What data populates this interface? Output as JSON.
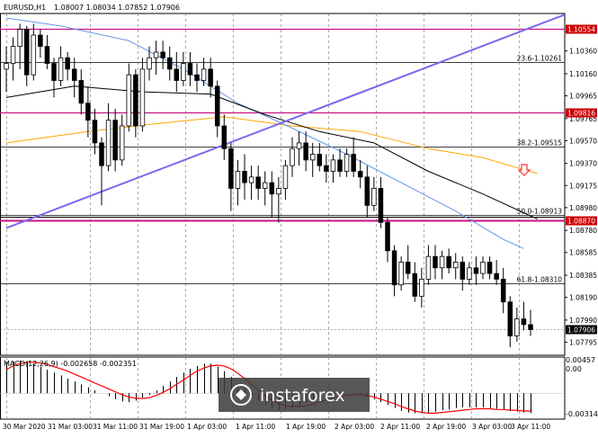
{
  "header": {
    "symbol": "EURUSD,H1",
    "ohlc": "1.08007 1.08034 1.07852 1.07906"
  },
  "indicator": {
    "label": "MACD(12,26,9) -0.002658 -0.002351",
    "scale_top": "0.00457",
    "scale_zero": "0.00",
    "scale_bottom": "-0.003142"
  },
  "watermark": {
    "text": "instaforex"
  },
  "price_marker": {
    "text": "1.07906",
    "value": 1.07906
  },
  "colors": {
    "bull_candle": "#ffffff",
    "bear_candle": "#000000",
    "trendline": "#7b68ee",
    "ma_black": "#000000",
    "ma_blue": "#6495ed",
    "ma_orange": "#ffa500",
    "resistance_line": "#c71585",
    "macd_signal": "#ff0000",
    "price_badge": "#cc0000",
    "down_arrow": "#ff3333"
  },
  "chart_data": {
    "type": "candlestick",
    "price_axis_ticks": [
      "1.10360",
      "1.10160",
      "1.09965",
      "1.09765",
      "1.09570",
      "1.09370",
      "1.09175",
      "1.08980",
      "1.08780",
      "1.08585",
      "1.08385",
      "1.08190",
      "1.07990",
      "1.07795"
    ],
    "time_axis_ticks": [
      "30 Mar 2020",
      "31 Mar 03:00",
      "31 Mar 11:00",
      "31 Mar 19:00",
      "1 Apr 03:00",
      "1 Apr 11:00",
      "1 Apr 19:00",
      "2 Apr 03:00",
      "2 Apr 11:00",
      "2 Apr 19:00",
      "3 Apr 03:00",
      "3 Apr 11:00"
    ],
    "ylim": [
      1.0768,
      1.1069
    ],
    "horizontal_levels": [
      {
        "label": "1.10554",
        "value": 1.10554,
        "kind": "resistance"
      },
      {
        "label": "23.6-1.10261",
        "value": 1.10261,
        "kind": "fibonacci"
      },
      {
        "label": "1.09816",
        "value": 1.09816,
        "kind": "resistance"
      },
      {
        "label": "38.2-1.09515",
        "value": 1.09515,
        "kind": "fibonacci"
      },
      {
        "label": "50.0-1.08913",
        "value": 1.08913,
        "kind": "fibonacci"
      },
      {
        "label": "1.08870",
        "value": 1.0887,
        "kind": "resistance"
      },
      {
        "label": "61.8-1.08310",
        "value": 1.0831,
        "kind": "fibonacci"
      }
    ],
    "candles": [
      {
        "o": 1.102,
        "h": 1.104,
        "l": 1.1,
        "c": 1.1025
      },
      {
        "o": 1.1025,
        "h": 1.1048,
        "l": 1.101,
        "c": 1.104
      },
      {
        "o": 1.104,
        "h": 1.106,
        "l": 1.102,
        "c": 1.1055
      },
      {
        "o": 1.1055,
        "h": 1.1058,
        "l": 1.1005,
        "c": 1.1015
      },
      {
        "o": 1.1015,
        "h": 1.106,
        "l": 1.101,
        "c": 1.105
      },
      {
        "o": 1.105,
        "h": 1.1055,
        "l": 1.103,
        "c": 1.104
      },
      {
        "o": 1.104,
        "h": 1.105,
        "l": 1.102,
        "c": 1.1025
      },
      {
        "o": 1.1025,
        "h": 1.103,
        "l": 1.0995,
        "c": 1.101
      },
      {
        "o": 1.101,
        "h": 1.104,
        "l": 1.1005,
        "c": 1.103
      },
      {
        "o": 1.103,
        "h": 1.1035,
        "l": 1.101,
        "c": 1.102
      },
      {
        "o": 1.102,
        "h": 1.103,
        "l": 1.0995,
        "c": 1.101
      },
      {
        "o": 1.101,
        "h": 1.102,
        "l": 1.098,
        "c": 1.099
      },
      {
        "o": 1.099,
        "h": 1.1005,
        "l": 1.096,
        "c": 1.0975
      },
      {
        "o": 1.0975,
        "h": 1.0985,
        "l": 1.0945,
        "c": 1.0955
      },
      {
        "o": 1.0955,
        "h": 1.096,
        "l": 1.09,
        "c": 1.0935
      },
      {
        "o": 1.0935,
        "h": 1.099,
        "l": 1.093,
        "c": 1.0975
      },
      {
        "o": 1.0975,
        "h": 1.0985,
        "l": 1.093,
        "c": 1.094
      },
      {
        "o": 1.094,
        "h": 1.098,
        "l": 1.0935,
        "c": 1.097
      },
      {
        "o": 1.097,
        "h": 1.1025,
        "l": 1.0965,
        "c": 1.1015
      },
      {
        "o": 1.1015,
        "h": 1.102,
        "l": 1.096,
        "c": 1.097
      },
      {
        "o": 1.097,
        "h": 1.103,
        "l": 1.0965,
        "c": 1.102
      },
      {
        "o": 1.102,
        "h": 1.104,
        "l": 1.101,
        "c": 1.103
      },
      {
        "o": 1.103,
        "h": 1.1045,
        "l": 1.1015,
        "c": 1.1035
      },
      {
        "o": 1.1035,
        "h": 1.1045,
        "l": 1.102,
        "c": 1.103
      },
      {
        "o": 1.103,
        "h": 1.104,
        "l": 1.101,
        "c": 1.102
      },
      {
        "o": 1.102,
        "h": 1.1035,
        "l": 1.1,
        "c": 1.101
      },
      {
        "o": 1.101,
        "h": 1.1035,
        "l": 1.1005,
        "c": 1.1025
      },
      {
        "o": 1.1025,
        "h": 1.1035,
        "l": 1.1005,
        "c": 1.1015
      },
      {
        "o": 1.1015,
        "h": 1.1025,
        "l": 1.1,
        "c": 1.101
      },
      {
        "o": 1.101,
        "h": 1.103,
        "l": 1.1005,
        "c": 1.102
      },
      {
        "o": 1.102,
        "h": 1.103,
        "l": 1.0995,
        "c": 1.1005
      },
      {
        "o": 1.1005,
        "h": 1.101,
        "l": 1.096,
        "c": 1.097
      },
      {
        "o": 1.097,
        "h": 1.098,
        "l": 1.094,
        "c": 1.095
      },
      {
        "o": 1.095,
        "h": 1.0955,
        "l": 1.0895,
        "c": 1.0915
      },
      {
        "o": 1.0915,
        "h": 1.094,
        "l": 1.09,
        "c": 1.093
      },
      {
        "o": 1.093,
        "h": 1.0945,
        "l": 1.0905,
        "c": 1.092
      },
      {
        "o": 1.092,
        "h": 1.0935,
        "l": 1.0905,
        "c": 1.0925
      },
      {
        "o": 1.0925,
        "h": 1.0935,
        "l": 1.0905,
        "c": 1.0915
      },
      {
        "o": 1.0915,
        "h": 1.093,
        "l": 1.09,
        "c": 1.092
      },
      {
        "o": 1.092,
        "h": 1.093,
        "l": 1.089,
        "c": 1.091
      },
      {
        "o": 1.091,
        "h": 1.0925,
        "l": 1.0885,
        "c": 1.0915
      },
      {
        "o": 1.0915,
        "h": 1.094,
        "l": 1.0905,
        "c": 1.0935
      },
      {
        "o": 1.0935,
        "h": 1.096,
        "l": 1.0925,
        "c": 1.095
      },
      {
        "o": 1.095,
        "h": 1.0965,
        "l": 1.0935,
        "c": 1.0955
      },
      {
        "o": 1.0955,
        "h": 1.0965,
        "l": 1.093,
        "c": 1.094
      },
      {
        "o": 1.094,
        "h": 1.0955,
        "l": 1.0925,
        "c": 1.0945
      },
      {
        "o": 1.0945,
        "h": 1.0955,
        "l": 1.093,
        "c": 1.0935
      },
      {
        "o": 1.0935,
        "h": 1.0945,
        "l": 1.092,
        "c": 1.093
      },
      {
        "o": 1.093,
        "h": 1.0945,
        "l": 1.092,
        "c": 1.094
      },
      {
        "o": 1.094,
        "h": 1.095,
        "l": 1.0925,
        "c": 1.093
      },
      {
        "o": 1.093,
        "h": 1.095,
        "l": 1.0925,
        "c": 1.0945
      },
      {
        "o": 1.0945,
        "h": 1.096,
        "l": 1.0925,
        "c": 1.093
      },
      {
        "o": 1.093,
        "h": 1.094,
        "l": 1.0915,
        "c": 1.0925
      },
      {
        "o": 1.0925,
        "h": 1.0935,
        "l": 1.089,
        "c": 1.09
      },
      {
        "o": 1.09,
        "h": 1.0925,
        "l": 1.0895,
        "c": 1.0915
      },
      {
        "o": 1.0915,
        "h": 1.0925,
        "l": 1.088,
        "c": 1.0885
      },
      {
        "o": 1.0885,
        "h": 1.089,
        "l": 1.085,
        "c": 1.086
      },
      {
        "o": 1.086,
        "h": 1.0865,
        "l": 1.082,
        "c": 1.083
      },
      {
        "o": 1.083,
        "h": 1.0855,
        "l": 1.0825,
        "c": 1.085
      },
      {
        "o": 1.085,
        "h": 1.0865,
        "l": 1.0835,
        "c": 1.084
      },
      {
        "o": 1.084,
        "h": 1.085,
        "l": 1.0815,
        "c": 1.082
      },
      {
        "o": 1.082,
        "h": 1.0845,
        "l": 1.081,
        "c": 1.0835
      },
      {
        "o": 1.0835,
        "h": 1.0865,
        "l": 1.083,
        "c": 1.0855
      },
      {
        "o": 1.0855,
        "h": 1.0865,
        "l": 1.0835,
        "c": 1.0845
      },
      {
        "o": 1.0845,
        "h": 1.086,
        "l": 1.0835,
        "c": 1.0855
      },
      {
        "o": 1.0855,
        "h": 1.0862,
        "l": 1.084,
        "c": 1.0845
      },
      {
        "o": 1.0845,
        "h": 1.0858,
        "l": 1.0835,
        "c": 1.085
      },
      {
        "o": 1.085,
        "h": 1.0855,
        "l": 1.0825,
        "c": 1.0835
      },
      {
        "o": 1.0835,
        "h": 1.085,
        "l": 1.083,
        "c": 1.0845
      },
      {
        "o": 1.0845,
        "h": 1.0855,
        "l": 1.083,
        "c": 1.084
      },
      {
        "o": 1.084,
        "h": 1.0855,
        "l": 1.0835,
        "c": 1.085
      },
      {
        "o": 1.085,
        "h": 1.0855,
        "l": 1.0835,
        "c": 1.084
      },
      {
        "o": 1.084,
        "h": 1.0852,
        "l": 1.083,
        "c": 1.0835
      },
      {
        "o": 1.0835,
        "h": 1.0845,
        "l": 1.0805,
        "c": 1.0815
      },
      {
        "o": 1.0815,
        "h": 1.082,
        "l": 1.0775,
        "c": 1.0785
      },
      {
        "o": 1.0785,
        "h": 1.081,
        "l": 1.078,
        "c": 1.08
      },
      {
        "o": 1.08,
        "h": 1.0815,
        "l": 1.079,
        "c": 1.0795
      },
      {
        "o": 1.0795,
        "h": 1.0808,
        "l": 1.0785,
        "c": 1.07906
      }
    ],
    "ma_black": [
      [
        0,
        1.0995
      ],
      [
        10,
        1.1005
      ],
      [
        20,
        1.1
      ],
      [
        30,
        1.0998
      ],
      [
        38,
        1.098
      ],
      [
        46,
        1.0965
      ],
      [
        54,
        1.0955
      ],
      [
        62,
        1.093
      ],
      [
        70,
        1.091
      ],
      [
        78,
        1.0888
      ]
    ],
    "ma_blue": [
      [
        0,
        1.1065
      ],
      [
        8,
        1.1058
      ],
      [
        18,
        1.1045
      ],
      [
        26,
        1.102
      ],
      [
        34,
        1.099
      ],
      [
        42,
        1.0968
      ],
      [
        50,
        1.0945
      ],
      [
        58,
        1.092
      ],
      [
        66,
        1.0895
      ],
      [
        73,
        1.087
      ],
      [
        76,
        1.0862
      ]
    ],
    "ma_orange": [
      [
        0,
        1.0955
      ],
      [
        12,
        1.0965
      ],
      [
        22,
        1.0972
      ],
      [
        32,
        1.0978
      ],
      [
        42,
        1.097
      ],
      [
        52,
        1.0965
      ],
      [
        62,
        1.095
      ],
      [
        70,
        1.0942
      ],
      [
        78,
        1.0928
      ]
    ],
    "trendline": [
      [
        0,
        1.088
      ],
      [
        82,
        1.1068
      ]
    ],
    "macd_hist": [
      0.0042,
      0.0043,
      0.0044,
      0.0043,
      0.004,
      0.0036,
      0.0032,
      0.0028,
      0.0024,
      0.002,
      0.0016,
      0.0012,
      0.0008,
      0.0004,
      0.0,
      -0.0004,
      -0.0008,
      -0.0011,
      -0.0012,
      -0.001,
      -0.0006,
      -0.0002,
      0.0004,
      0.001,
      0.0016,
      0.0022,
      0.0028,
      0.0033,
      0.0037,
      0.004,
      0.004,
      0.0036,
      0.003,
      0.0022,
      0.0013,
      0.0005,
      -0.0003,
      -0.001,
      -0.0016,
      -0.002,
      -0.0022,
      -0.0022,
      -0.002,
      -0.0017,
      -0.0013,
      -0.0009,
      -0.0006,
      -0.0003,
      -0.0002,
      -0.0001,
      0.0,
      0.0,
      -0.0002,
      -0.0005,
      -0.0008,
      -0.0012,
      -0.0016,
      -0.002,
      -0.0024,
      -0.0026,
      -0.0027,
      -0.0027,
      -0.0026,
      -0.0025,
      -0.0023,
      -0.0022,
      -0.002,
      -0.0019,
      -0.0019,
      -0.0019,
      -0.0019,
      -0.002,
      -0.0021,
      -0.0022,
      -0.0024,
      -0.0025,
      -0.0026,
      -0.0027
    ],
    "macd_signal": [
      0.0032,
      0.0037,
      0.004,
      0.0042,
      0.0042,
      0.0041,
      0.0039,
      0.0036,
      0.0033,
      0.003,
      0.0026,
      0.0022,
      0.0018,
      0.0014,
      0.001,
      0.0006,
      0.0002,
      -0.0002,
      -0.0005,
      -0.0007,
      -0.0007,
      -0.0006,
      -0.0003,
      0.0001,
      0.0006,
      0.0012,
      0.0018,
      0.0024,
      0.003,
      0.0034,
      0.0037,
      0.0038,
      0.0037,
      0.0033,
      0.0027,
      0.002,
      0.0012,
      0.0004,
      -0.0003,
      -0.0009,
      -0.0014,
      -0.0017,
      -0.0018,
      -0.0018,
      -0.0017,
      -0.0015,
      -0.0012,
      -0.0009,
      -0.0006,
      -0.0004,
      -0.0003,
      -0.0002,
      -0.0002,
      -0.0003,
      -0.0005,
      -0.0008,
      -0.0011,
      -0.0014,
      -0.0018,
      -0.0021,
      -0.0024,
      -0.0026,
      -0.0027,
      -0.0027,
      -0.0026,
      -0.0025,
      -0.0024,
      -0.0023,
      -0.0022,
      -0.0021,
      -0.0021,
      -0.0021,
      -0.0022,
      -0.0022,
      -0.0023,
      -0.0023,
      -0.0024,
      -0.0024
    ],
    "macd_ylim": [
      -0.0035,
      0.0049
    ]
  }
}
